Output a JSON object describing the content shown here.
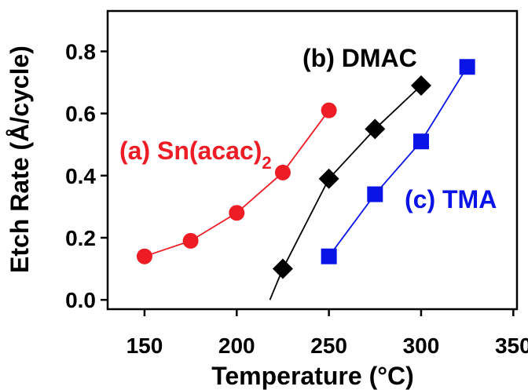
{
  "chart_data": {
    "type": "line",
    "xlabel": "Temperature (°C)",
    "ylabel": "Etch Rate (Å/cycle)",
    "xlim": [
      130,
      352
    ],
    "ylim": [
      -0.03,
      0.93
    ],
    "x_ticks": [
      150,
      200,
      250,
      300,
      350
    ],
    "y_ticks": [
      0.0,
      0.2,
      0.4,
      0.6,
      0.8
    ],
    "x_tick_labels": [
      "150",
      "200",
      "250",
      "300",
      "350"
    ],
    "y_tick_labels": [
      "0.0",
      "0.2",
      "0.4",
      "0.6",
      "0.8"
    ],
    "grid": false,
    "series": [
      {
        "label_main": "(a) Sn(acac)",
        "label_sub": "2",
        "color": "#ee1c25",
        "marker": "circle",
        "x": [
          150,
          175,
          200,
          225,
          250
        ],
        "y": [
          0.14,
          0.19,
          0.28,
          0.41,
          0.61
        ]
      },
      {
        "label_main": "(b) DMAC",
        "color": "#000000",
        "marker": "diamond",
        "x": [
          225,
          250,
          275,
          300
        ],
        "y": [
          0.1,
          0.39,
          0.55,
          0.69
        ],
        "line_start": [
          218,
          0.0
        ]
      },
      {
        "label_main": "(c) TMA",
        "color": "#0a14e6",
        "marker": "square",
        "x": [
          250,
          275,
          300,
          325
        ],
        "y": [
          0.14,
          0.34,
          0.51,
          0.75
        ]
      }
    ]
  }
}
